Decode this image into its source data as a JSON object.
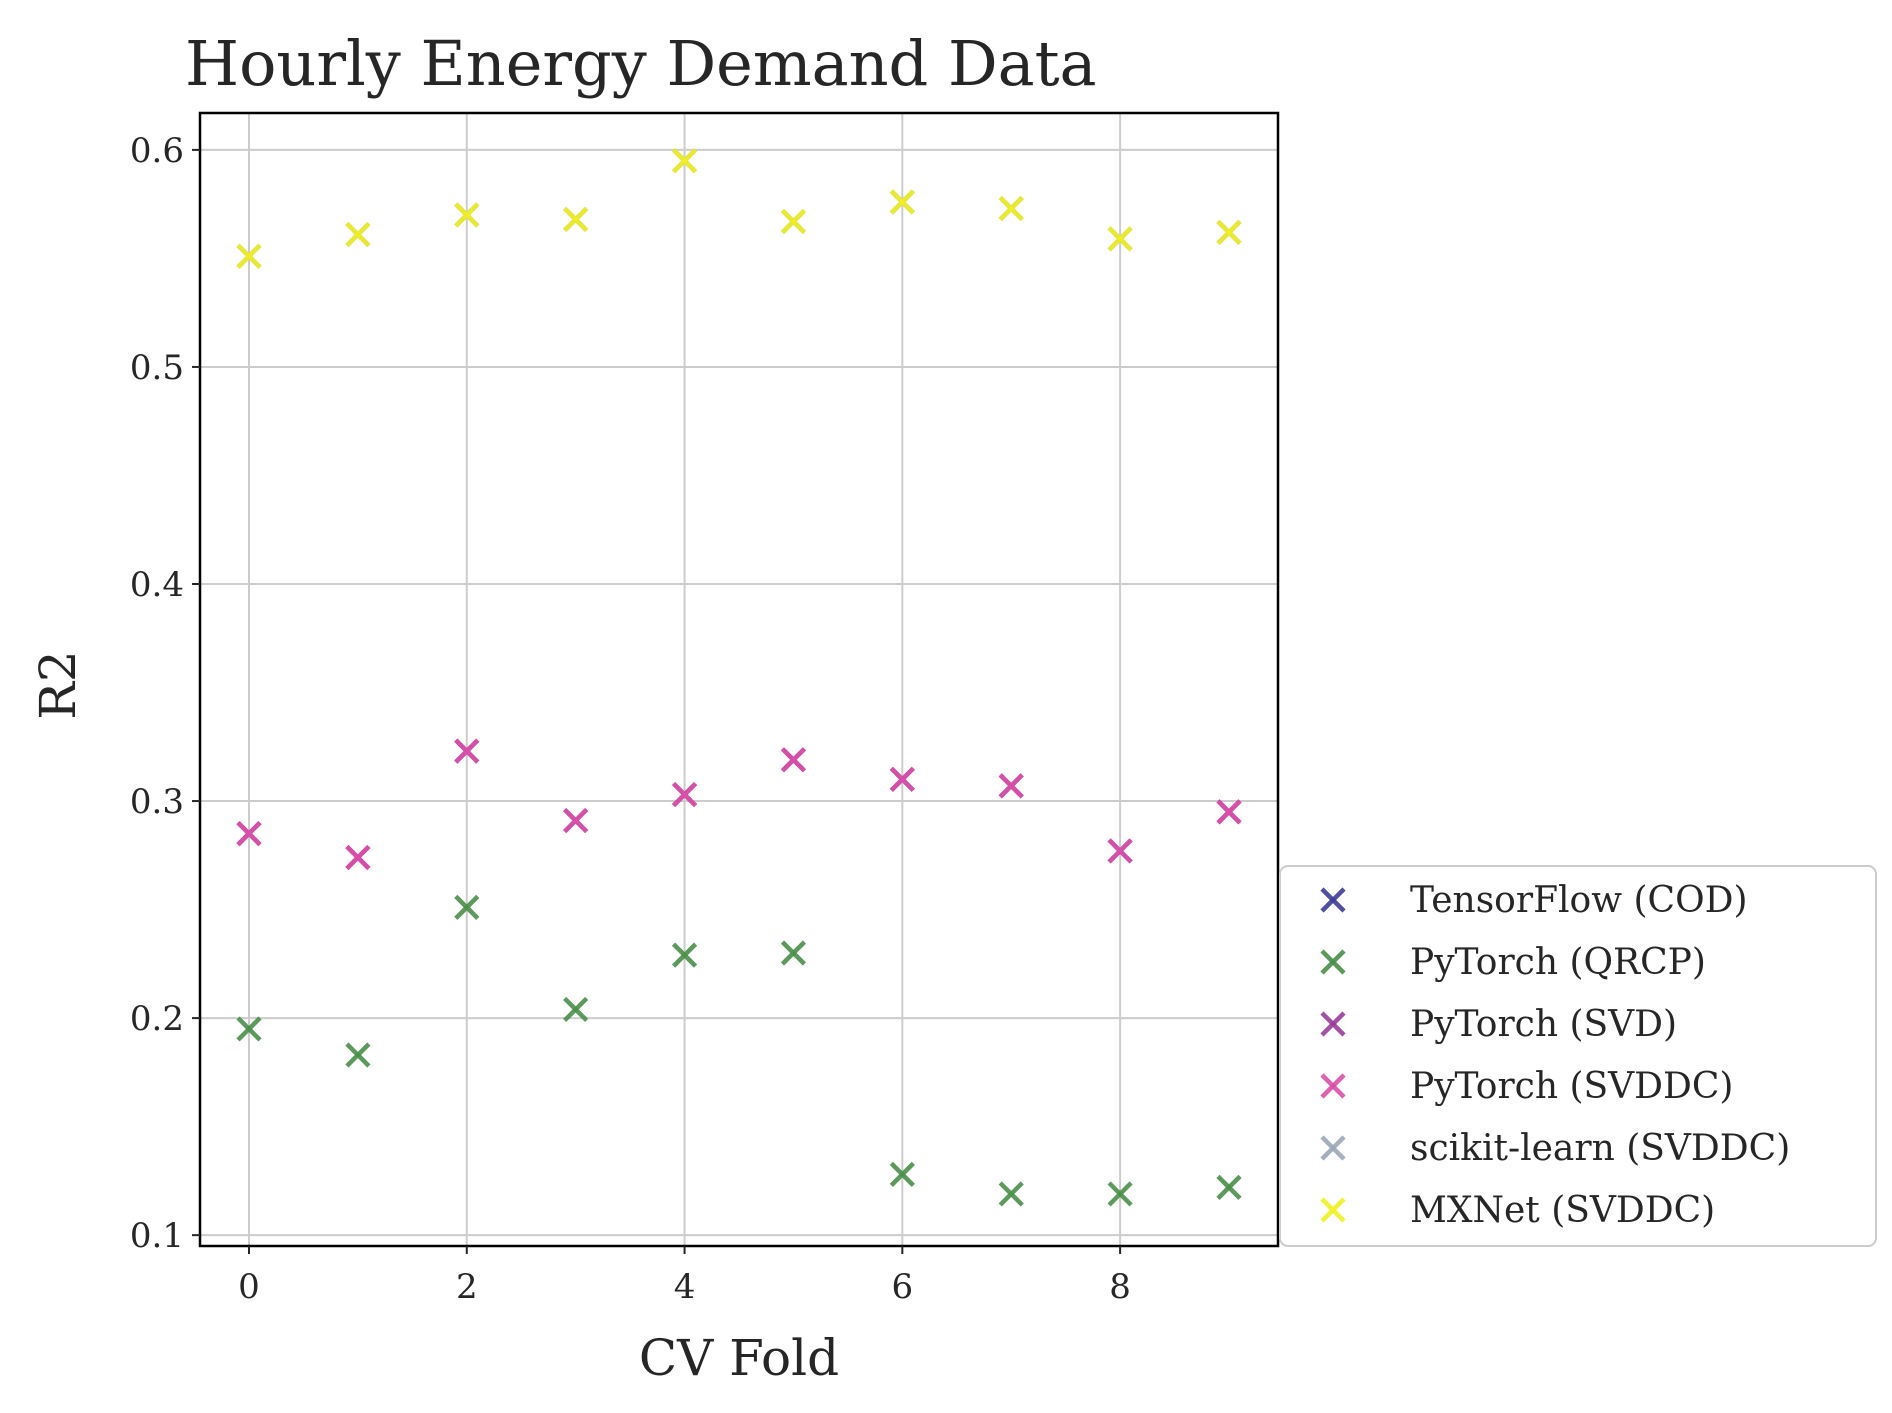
{
  "chart_data": {
    "type": "scatter",
    "title": "Hourly Energy Demand Data",
    "xlabel": "CV Fold",
    "ylabel": "R2",
    "xlim": [
      -0.45,
      9.45
    ],
    "ylim": [
      0.095,
      0.617
    ],
    "xticks": [
      0,
      2,
      4,
      6,
      8
    ],
    "xtick_labels": [
      "0",
      "2",
      "4",
      "6",
      "8"
    ],
    "yticks": [
      0.1,
      0.2,
      0.3,
      0.4,
      0.5,
      0.6
    ],
    "ytick_labels": [
      "0.1",
      "0.2",
      "0.3",
      "0.4",
      "0.5",
      "0.6"
    ],
    "grid": true,
    "legend_position": "lower-right outside plot",
    "marker": "x",
    "series": [
      {
        "name": "TensorFlow (COD)",
        "color": "#3d3d99",
        "x": [],
        "y": []
      },
      {
        "name": "PyTorch (QRCP)",
        "color": "#4a8f4a",
        "x": [
          0,
          1,
          2,
          3,
          4,
          5,
          6,
          7,
          8,
          9
        ],
        "y": [
          0.195,
          0.183,
          0.251,
          0.204,
          0.229,
          0.23,
          0.128,
          0.119,
          0.119,
          0.122
        ]
      },
      {
        "name": "PyTorch (SVD)",
        "color": "#9a3d9a",
        "x": [
          0,
          1,
          2,
          3,
          4,
          5,
          6,
          7,
          8,
          9
        ],
        "y": [
          0.285,
          0.274,
          0.323,
          0.291,
          0.303,
          0.319,
          0.31,
          0.307,
          0.277,
          0.295
        ]
      },
      {
        "name": "PyTorch (SVDDC)",
        "color": "#d94fa8",
        "x": [
          0,
          1,
          2,
          3,
          4,
          5,
          6,
          7,
          8,
          9
        ],
        "y": [
          0.285,
          0.274,
          0.323,
          0.291,
          0.303,
          0.319,
          0.31,
          0.307,
          0.277,
          0.295
        ]
      },
      {
        "name": "scikit-learn (SVDDC)",
        "color": "#9aa8b5",
        "x": [
          0,
          1,
          2,
          3,
          4,
          5,
          6,
          7,
          8,
          9
        ],
        "y": [
          0.551,
          0.561,
          0.57,
          0.568,
          0.595,
          0.567,
          0.576,
          0.573,
          0.559,
          0.562
        ]
      },
      {
        "name": "MXNet (SVDDC)",
        "color": "#f0f020",
        "x": [
          0,
          1,
          2,
          3,
          4,
          5,
          6,
          7,
          8,
          9
        ],
        "y": [
          0.551,
          0.561,
          0.57,
          0.568,
          0.595,
          0.567,
          0.576,
          0.573,
          0.559,
          0.562
        ]
      }
    ]
  }
}
